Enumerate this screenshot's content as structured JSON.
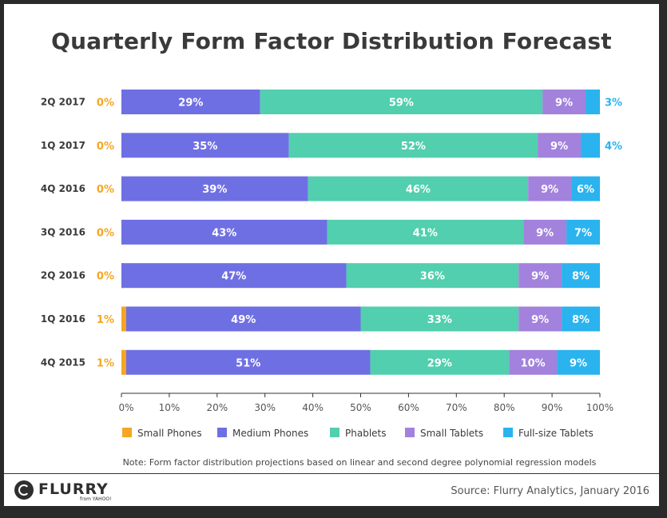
{
  "title": "Quarterly Form Factor Distribution Forecast",
  "note": "Note: Form factor distribution projections based on linear and second degree polynomial regression models",
  "source": "Source: Flurry Analytics, January 2016",
  "logo": {
    "name": "FLURRY",
    "sub": "from YAHOO!"
  },
  "chart_data": {
    "type": "bar",
    "orientation": "horizontal-stacked-100",
    "categories": [
      "2Q 2017",
      "1Q 2017",
      "4Q 2016",
      "3Q 2016",
      "2Q 2016",
      "1Q 2016",
      "4Q 2015"
    ],
    "series": [
      {
        "name": "Small Phones",
        "color": "#f5a623",
        "values": [
          0,
          0,
          0,
          0,
          0,
          1,
          1
        ],
        "labels": [
          "0%",
          "0%",
          "0%",
          "0%",
          "0%",
          "1%",
          "1%"
        ]
      },
      {
        "name": "Medium Phones",
        "color": "#6f6fe4",
        "values": [
          29,
          35,
          39,
          43,
          47,
          49,
          51
        ],
        "labels": [
          "29%",
          "35%",
          "39%",
          "43%",
          "47%",
          "49%",
          "51%"
        ]
      },
      {
        "name": "Phablets",
        "color": "#52cfae",
        "values": [
          59,
          52,
          46,
          41,
          36,
          33,
          29
        ],
        "labels": [
          "59%",
          "52%",
          "46%",
          "41%",
          "36%",
          "33%",
          "29%"
        ]
      },
      {
        "name": "Small Tablets",
        "color": "#a282dc",
        "values": [
          9,
          9,
          9,
          9,
          9,
          9,
          10
        ],
        "labels": [
          "9%",
          "9%",
          "9%",
          "9%",
          "9%",
          "9%",
          "10%"
        ]
      },
      {
        "name": "Full-size Tablets",
        "color": "#2ab3ee",
        "values": [
          3,
          4,
          6,
          7,
          8,
          8,
          9
        ],
        "labels": [
          "3%",
          "4%",
          "6%",
          "7%",
          "8%",
          "8%",
          "9%"
        ]
      }
    ],
    "xlim": [
      0,
      100
    ],
    "xticks": [
      "0%",
      "10%",
      "20%",
      "30%",
      "40%",
      "50%",
      "60%",
      "70%",
      "80%",
      "90%",
      "100%"
    ],
    "legend_position": "bottom",
    "grid": false
  }
}
